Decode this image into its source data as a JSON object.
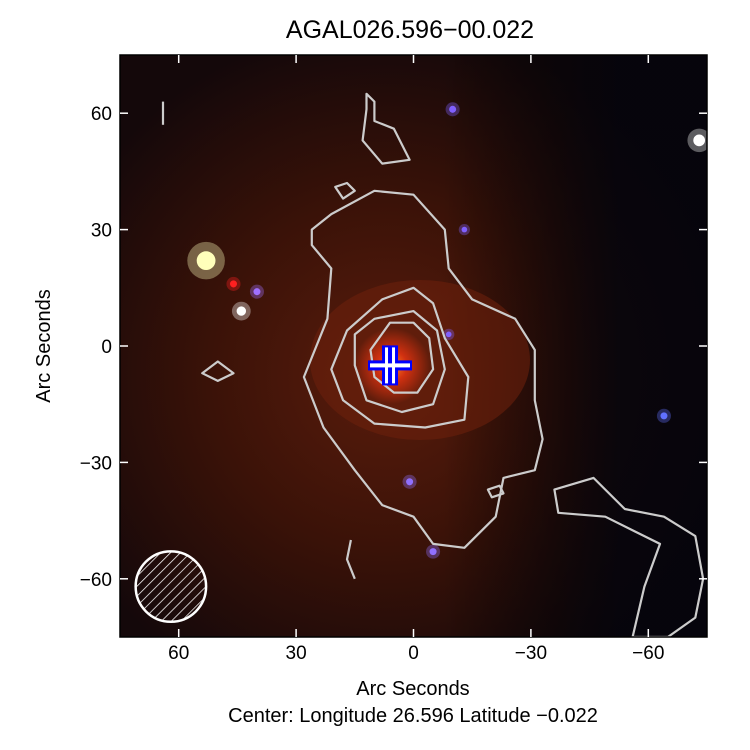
{
  "chart_data": {
    "type": "image-contour",
    "title": "AGAL026.596−00.022",
    "xlabel": "Arc Seconds",
    "ylabel": "Arc Seconds",
    "footer": "Center:  Longitude 26.596 Latitude −0.022",
    "xlim": [
      75,
      -75
    ],
    "ylim": [
      -75,
      75
    ],
    "xticks": [
      60,
      30,
      0,
      -30,
      -60
    ],
    "xtick_labels": [
      "60",
      "30",
      "0",
      "−30",
      "−60"
    ],
    "yticks": [
      60,
      30,
      0,
      -30,
      -60
    ],
    "ytick_labels": [
      "60",
      "30",
      "0",
      "−30",
      "−60"
    ],
    "contour_color": "#cccccc",
    "contours": [
      {
        "closed": true,
        "points": [
          [
            6,
            6
          ],
          [
            0,
            6
          ],
          [
            -4,
            2
          ],
          [
            -5,
            -6
          ],
          [
            -1,
            -12
          ],
          [
            5,
            -12
          ],
          [
            10,
            -8
          ],
          [
            11,
            -1
          ]
        ]
      },
      {
        "closed": true,
        "points": [
          [
            10,
            7
          ],
          [
            0,
            9
          ],
          [
            -6,
            4
          ],
          [
            -8,
            -6
          ],
          [
            -5,
            -15
          ],
          [
            3,
            -17
          ],
          [
            12,
            -14
          ],
          [
            15,
            -5
          ],
          [
            15,
            3
          ]
        ]
      },
      {
        "closed": true,
        "points": [
          [
            17,
            4
          ],
          [
            8,
            12
          ],
          [
            0,
            15
          ],
          [
            -5,
            11
          ],
          [
            -8,
            2
          ],
          [
            -14,
            -8
          ],
          [
            -13,
            -19
          ],
          [
            -3,
            -21
          ],
          [
            10,
            -20
          ],
          [
            18,
            -14
          ],
          [
            21,
            -6
          ]
        ]
      },
      {
        "closed": true,
        "points": [
          [
            26,
            30
          ],
          [
            21,
            34
          ],
          [
            10,
            40
          ],
          [
            0,
            39
          ],
          [
            -8,
            30
          ],
          [
            -9,
            20
          ],
          [
            -15,
            12
          ],
          [
            -26,
            7
          ],
          [
            -31,
            -1
          ],
          [
            -31,
            -14
          ],
          [
            -33,
            -24
          ],
          [
            -31,
            -32
          ],
          [
            -23,
            -34
          ],
          [
            -21,
            -44
          ],
          [
            -13,
            -52
          ],
          [
            -5,
            -51
          ],
          [
            0,
            -44
          ],
          [
            8,
            -41
          ],
          [
            15,
            -32
          ],
          [
            23,
            -21
          ],
          [
            28,
            -8
          ],
          [
            22,
            7
          ],
          [
            21,
            20
          ],
          [
            26,
            26
          ]
        ]
      },
      {
        "closed": true,
        "points": [
          [
            12,
            65
          ],
          [
            10,
            63
          ],
          [
            10,
            58
          ],
          [
            5,
            56
          ],
          [
            1,
            48
          ],
          [
            8,
            47
          ],
          [
            13,
            53
          ],
          [
            12,
            61
          ]
        ]
      },
      {
        "closed": true,
        "points": [
          [
            -36,
            -37
          ],
          [
            -46,
            -34
          ],
          [
            -54,
            -42
          ],
          [
            -64,
            -44
          ],
          [
            -72,
            -49
          ],
          [
            -74,
            -60
          ],
          [
            -72,
            -70
          ],
          [
            -65,
            -75
          ],
          [
            -56,
            -75
          ],
          [
            -59,
            -62
          ],
          [
            -63,
            -51
          ],
          [
            -49,
            -44
          ],
          [
            -37,
            -43
          ]
        ]
      },
      {
        "closed": true,
        "points": [
          [
            54,
            -7
          ],
          [
            50,
            -4
          ],
          [
            46,
            -7
          ],
          [
            50,
            -9
          ]
        ]
      },
      {
        "closed": true,
        "points": [
          [
            20,
            41
          ],
          [
            17,
            42
          ],
          [
            15,
            40
          ],
          [
            18,
            38
          ]
        ]
      },
      {
        "closed": true,
        "points": [
          [
            -19,
            -37
          ],
          [
            -22,
            -36
          ],
          [
            -23,
            -38
          ],
          [
            -20,
            -39
          ]
        ]
      },
      {
        "closed": false,
        "points": [
          [
            16,
            -50
          ],
          [
            17,
            -55
          ],
          [
            15,
            -60
          ]
        ]
      },
      {
        "closed": false,
        "points": [
          [
            64,
            63
          ],
          [
            64,
            57
          ]
        ]
      }
    ],
    "sources": [
      {
        "x": 53,
        "y": 22,
        "color": "#ffffbb",
        "r": 4
      },
      {
        "x": 44,
        "y": 9,
        "color": "#ffffff",
        "r": 2
      },
      {
        "x": 46,
        "y": 16,
        "color": "#ff2020",
        "r": 1.5
      },
      {
        "x": 40,
        "y": 14,
        "color": "#a070ff",
        "r": 1.5
      },
      {
        "x": -73,
        "y": 53,
        "color": "#ffffff",
        "r": 2.5
      },
      {
        "x": -10,
        "y": 61,
        "color": "#8060ff",
        "r": 1.5
      },
      {
        "x": -13,
        "y": 30,
        "color": "#8060ff",
        "r": 1.2
      },
      {
        "x": -64,
        "y": -18,
        "color": "#6070ff",
        "r": 1.5
      },
      {
        "x": 1,
        "y": -35,
        "color": "#9070ff",
        "r": 1.5
      },
      {
        "x": -5,
        "y": -53,
        "color": "#9070ff",
        "r": 1.5
      },
      {
        "x": -9,
        "y": 3,
        "color": "#8060ff",
        "r": 1.2
      }
    ],
    "marker": {
      "type": "cross",
      "x": 6,
      "y": -5,
      "color": "#0000ff"
    },
    "beam": {
      "x": 62,
      "y": -62,
      "diameter_arcsec": 18,
      "hatched": true
    }
  }
}
